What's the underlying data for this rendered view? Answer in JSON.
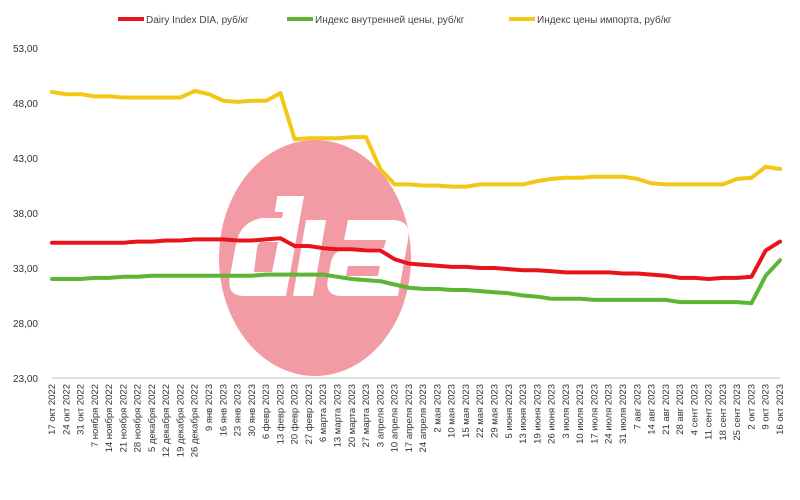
{
  "chart_data": {
    "type": "line",
    "title": "",
    "xlabel": "",
    "ylabel": "",
    "ylim": [
      23,
      53
    ],
    "yticks": [
      "53,00",
      "48,00",
      "43,00",
      "38,00",
      "33,00",
      "28,00",
      "23,00"
    ],
    "legend_position": "top",
    "grid": false,
    "watermark_text": "dia",
    "categories": [
      "17 окт 2022",
      "24 окт 2022",
      "31 окт 2022",
      "7 ноября 2022",
      "14 ноября 2022",
      "21 ноября 2022",
      "28 ноября 2022",
      "5 декабря 2022",
      "12 декабря 2022",
      "19 декабря 2022",
      "26 декабря 2022",
      "9 янв 2023",
      "16 янв 2023",
      "23 янв 2023",
      "30 янв 2023",
      "6 февр 2023",
      "13 февр 2023",
      "20 февр 2023",
      "27 февр 2023",
      "6 марта 2023",
      "13 марта 2023",
      "20 марта 2023",
      "27 марта 2023",
      "3 апреля 2023",
      "10 апреля 2023",
      "17 апреля 2023",
      "24 апреля 2023",
      "2 мая 2023",
      "10 мая 2023",
      "15 мая 2023",
      "22 мая 2023",
      "29 мая 2023",
      "5 июня 2023",
      "13 июня 2023",
      "19 июня 2023",
      "26 июня 2023",
      "3 июля 2023",
      "10 июля 2023",
      "17 июля 2023",
      "24 июля 2023",
      "31 июля 2023",
      "7 авг 2023",
      "14 авг 2023",
      "21 авг 2023",
      "28 авг 2023",
      "4 сент 2023",
      "11 сент 2023",
      "18 сент 2023",
      "25 сент 2023",
      "2 окт 2023",
      "9 окт 2023",
      "16 окт 2023"
    ],
    "series": [
      {
        "name": "Dairy Index DIA, руб/кг",
        "color": "#e8141c",
        "values": [
          35.3,
          35.3,
          35.3,
          35.3,
          35.3,
          35.3,
          35.4,
          35.4,
          35.5,
          35.5,
          35.6,
          35.6,
          35.6,
          35.5,
          35.5,
          35.6,
          35.7,
          35.0,
          35.0,
          34.8,
          34.7,
          34.7,
          34.6,
          34.6,
          33.8,
          33.4,
          33.3,
          33.2,
          33.1,
          33.1,
          33.0,
          33.0,
          32.9,
          32.8,
          32.8,
          32.7,
          32.6,
          32.6,
          32.6,
          32.6,
          32.5,
          32.5,
          32.4,
          32.3,
          32.1,
          32.1,
          32.0,
          32.1,
          32.1,
          32.2,
          34.6,
          35.4
        ]
      },
      {
        "name": "Индекс внутренней цены, руб/кг",
        "color": "#5db535",
        "values": [
          32.0,
          32.0,
          32.0,
          32.1,
          32.1,
          32.2,
          32.2,
          32.3,
          32.3,
          32.3,
          32.3,
          32.3,
          32.3,
          32.3,
          32.3,
          32.4,
          32.4,
          32.4,
          32.4,
          32.4,
          32.2,
          32.0,
          31.9,
          31.8,
          31.5,
          31.2,
          31.1,
          31.1,
          31.0,
          31.0,
          30.9,
          30.8,
          30.7,
          30.5,
          30.4,
          30.2,
          30.2,
          30.2,
          30.1,
          30.1,
          30.1,
          30.1,
          30.1,
          30.1,
          29.9,
          29.9,
          29.9,
          29.9,
          29.9,
          29.8,
          32.3,
          33.7
        ]
      },
      {
        "name": "Индекс цены импорта, руб/кг",
        "color": "#f2c715",
        "values": [
          49.0,
          48.8,
          48.8,
          48.6,
          48.6,
          48.5,
          48.5,
          48.5,
          48.5,
          48.5,
          49.1,
          48.8,
          48.2,
          48.1,
          48.2,
          48.2,
          48.9,
          44.7,
          44.8,
          44.8,
          44.8,
          44.9,
          44.9,
          42.0,
          40.6,
          40.6,
          40.5,
          40.5,
          40.4,
          40.4,
          40.6,
          40.6,
          40.6,
          40.6,
          40.9,
          41.1,
          41.2,
          41.2,
          41.3,
          41.3,
          41.3,
          41.1,
          40.7,
          40.6,
          40.6,
          40.6,
          40.6,
          40.6,
          41.1,
          41.2,
          42.2,
          42.0
        ]
      }
    ]
  }
}
